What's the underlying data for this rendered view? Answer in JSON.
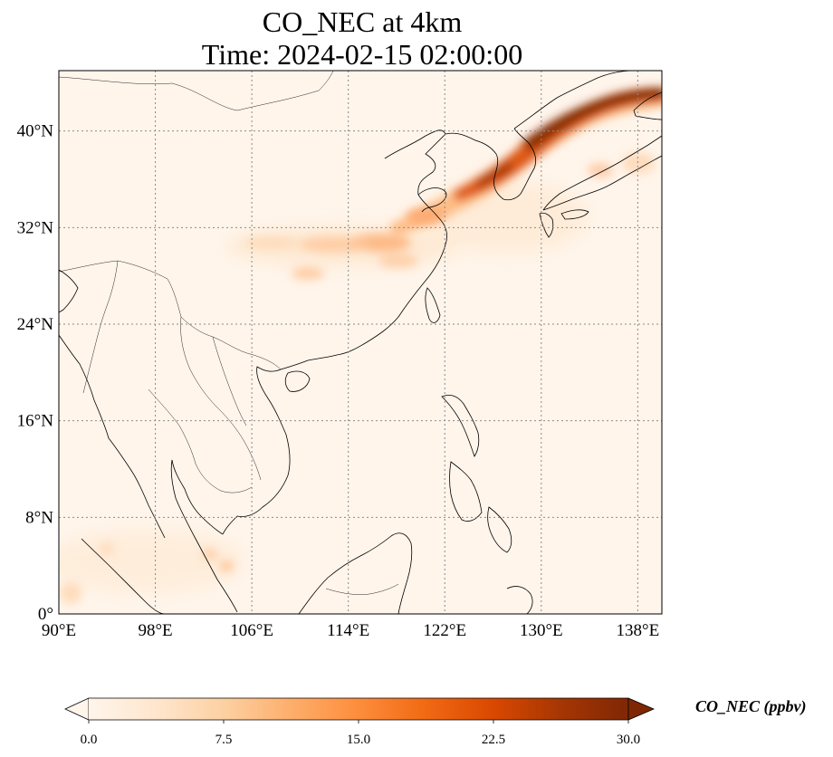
{
  "title": {
    "line1": "CO_NEC at 4km",
    "line2": "Time: 2024-02-15 02:00:00"
  },
  "map": {
    "lon_range": [
      90,
      140
    ],
    "lat_range": [
      0,
      45
    ],
    "lon_ticks": [
      {
        "value": 90,
        "label": "90°E"
      },
      {
        "value": 98,
        "label": "98°E"
      },
      {
        "value": 106,
        "label": "106°E"
      },
      {
        "value": 114,
        "label": "114°E"
      },
      {
        "value": 122,
        "label": "122°E"
      },
      {
        "value": 130,
        "label": "130°E"
      },
      {
        "value": 138,
        "label": "138°E"
      }
    ],
    "lat_ticks": [
      {
        "value": 0,
        "label": "0°"
      },
      {
        "value": 8,
        "label": "8°N"
      },
      {
        "value": 16,
        "label": "16°N"
      },
      {
        "value": 24,
        "label": "24°N"
      },
      {
        "value": 32,
        "label": "32°N"
      },
      {
        "value": 40,
        "label": "40°N"
      }
    ],
    "gridlines": true,
    "background_color": "#fff5eb",
    "plumes": [
      {
        "lon": 136,
        "lat": 42.3,
        "value": 30
      },
      {
        "lon": 131,
        "lat": 40.5,
        "value": 28
      },
      {
        "lon": 127,
        "lat": 37.5,
        "value": 26
      },
      {
        "lon": 124,
        "lat": 34.8,
        "value": 18
      },
      {
        "lon": 121,
        "lat": 33,
        "value": 12
      },
      {
        "lon": 117,
        "lat": 30.5,
        "value": 11
      },
      {
        "lon": 113,
        "lat": 30.7,
        "value": 8
      },
      {
        "lon": 110,
        "lat": 28.2,
        "value": 7
      },
      {
        "lon": 137,
        "lat": 37,
        "value": 7
      },
      {
        "lon": 133,
        "lat": 36.5,
        "value": 6
      },
      {
        "lon": 102.5,
        "lat": 4.5,
        "value": 5
      },
      {
        "lon": 94,
        "lat": 5.3,
        "value": 4
      }
    ]
  },
  "colorbar": {
    "label": "CO_NEC (ppbv)",
    "min": 0,
    "max": 30,
    "extend": "both",
    "ticks": [
      "0.0",
      "7.5",
      "15.0",
      "22.5",
      "30.0"
    ],
    "colors": [
      "#fff5eb",
      "#fee6ce",
      "#fdd0a2",
      "#fdae6b",
      "#fd8d3c",
      "#f16913",
      "#d94801",
      "#a63603",
      "#7f2704"
    ]
  }
}
